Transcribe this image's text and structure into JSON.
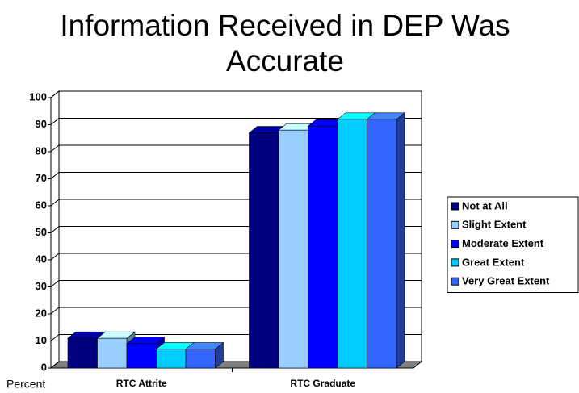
{
  "chart_data": {
    "type": "bar3d",
    "title": "Information Received in DEP Was Accurate",
    "y_label": "Percent",
    "categories": [
      "RTC Attrite",
      "RTC Graduate"
    ],
    "series": [
      {
        "name": "Not at All",
        "color": "#000080",
        "values": [
          11,
          87
        ]
      },
      {
        "name": "Slight Extent",
        "color": "#99ccff",
        "values": [
          11,
          88
        ]
      },
      {
        "name": "Moderate Extent",
        "color": "#0000ff",
        "values": [
          9,
          89.5
        ]
      },
      {
        "name": "Great Extent",
        "color": "#00ccff",
        "values": [
          7,
          92
        ]
      },
      {
        "name": "Very Great Extent",
        "color": "#3366ff",
        "values": [
          7,
          92
        ]
      }
    ],
    "ylim": [
      0,
      100
    ],
    "yticks": [
      0,
      10,
      20,
      30,
      40,
      50,
      60,
      70,
      80,
      90,
      100
    ],
    "grid": true,
    "legend": "right"
  }
}
